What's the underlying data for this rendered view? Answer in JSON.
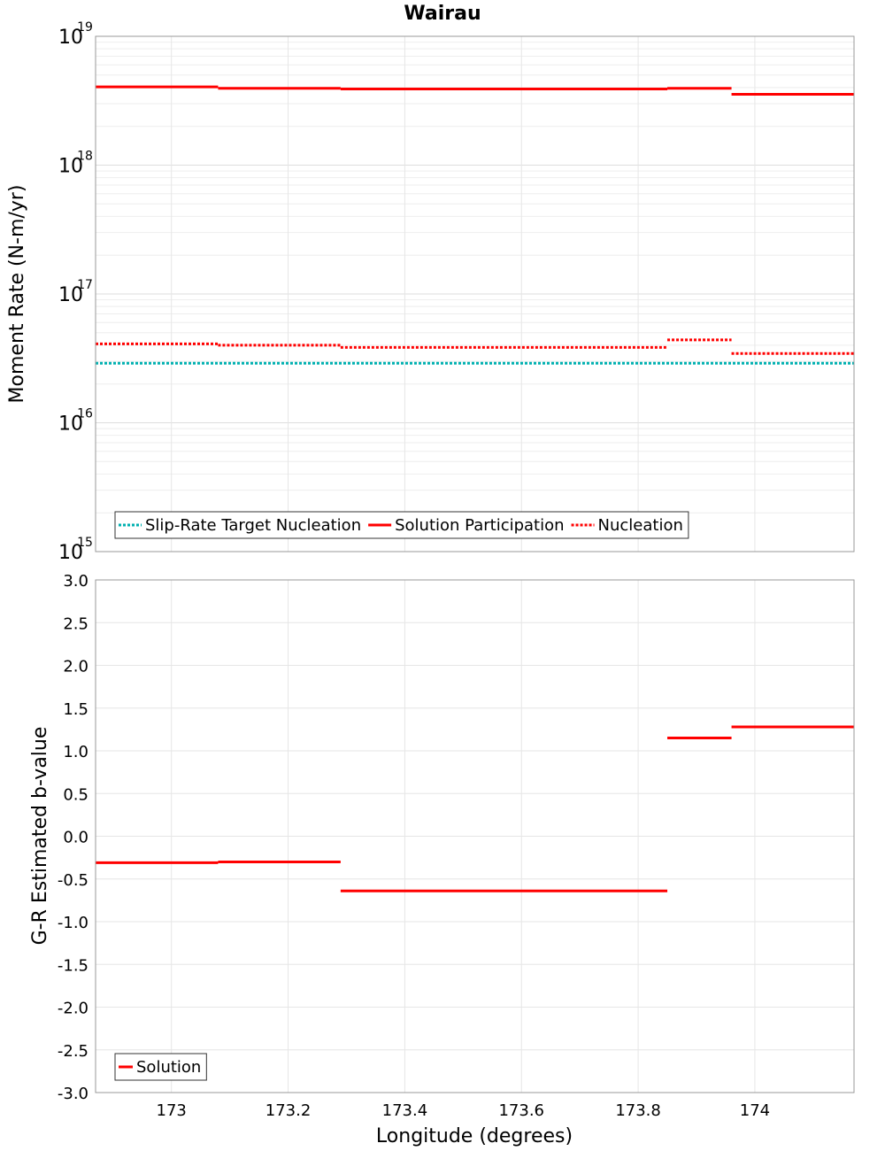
{
  "chart_data": [
    {
      "type": "line",
      "title": "Wairau",
      "xlabel": "",
      "ylabel": "Moment Rate (N-m/yr)",
      "yscale": "log",
      "xlim": [
        172.87,
        174.17
      ],
      "ylim": [
        1000000000000000.0,
        1e+19
      ],
      "y_ticks": [
        {
          "base": "10",
          "exp": "15",
          "value": 1000000000000000.0
        },
        {
          "base": "10",
          "exp": "16",
          "value": 1e+16
        },
        {
          "base": "10",
          "exp": "17",
          "value": 1e+17
        },
        {
          "base": "10",
          "exp": "18",
          "value": 1e+18
        },
        {
          "base": "10",
          "exp": "19",
          "value": 1e+19
        }
      ],
      "grid": true,
      "legend_position": "bottom-left",
      "series": [
        {
          "name": "Slip-Rate Target Nucleation",
          "color": "#00b0b0",
          "style": "dotted",
          "segments": [
            {
              "x0": 172.87,
              "x1": 174.17,
              "y": 2.9e+16
            }
          ]
        },
        {
          "name": "Solution Participation",
          "color": "#ff0000",
          "style": "solid",
          "segments": [
            {
              "x0": 172.87,
              "x1": 173.08,
              "y": 4.05e+18
            },
            {
              "x0": 173.08,
              "x1": 173.29,
              "y": 3.95e+18
            },
            {
              "x0": 173.29,
              "x1": 173.85,
              "y": 3.9e+18
            },
            {
              "x0": 173.85,
              "x1": 173.96,
              "y": 3.95e+18
            },
            {
              "x0": 173.96,
              "x1": 174.17,
              "y": 3.55e+18
            }
          ]
        },
        {
          "name": "Nucleation",
          "color": "#ff0000",
          "style": "dotted",
          "segments": [
            {
              "x0": 172.87,
              "x1": 173.08,
              "y": 4.1e+16
            },
            {
              "x0": 173.08,
              "x1": 173.29,
              "y": 4e+16
            },
            {
              "x0": 173.29,
              "x1": 173.85,
              "y": 3.85e+16
            },
            {
              "x0": 173.85,
              "x1": 173.96,
              "y": 4.4e+16
            },
            {
              "x0": 173.96,
              "x1": 174.17,
              "y": 3.45e+16
            }
          ]
        }
      ]
    },
    {
      "type": "line",
      "title": "",
      "xlabel": "Longitude (degrees)",
      "ylabel": "G-R Estimated b-value",
      "xlim": [
        172.87,
        174.17
      ],
      "ylim": [
        -3.0,
        3.0
      ],
      "x_ticks": [
        "173",
        "173.2",
        "173.4",
        "173.6",
        "173.8",
        "174"
      ],
      "x_tick_values": [
        173.0,
        173.2,
        173.4,
        173.6,
        173.8,
        174.0
      ],
      "y_ticks": [
        "-3.0",
        "-2.5",
        "-2.0",
        "-1.5",
        "-1.0",
        "-0.5",
        "0.0",
        "0.5",
        "1.0",
        "1.5",
        "2.0",
        "2.5",
        "3.0"
      ],
      "y_tick_values": [
        -3.0,
        -2.5,
        -2.0,
        -1.5,
        -1.0,
        -0.5,
        0.0,
        0.5,
        1.0,
        1.5,
        2.0,
        2.5,
        3.0
      ],
      "grid": true,
      "legend_position": "bottom-left",
      "series": [
        {
          "name": "Solution",
          "color": "#ff0000",
          "style": "solid",
          "segments": [
            {
              "x0": 172.87,
              "x1": 173.08,
              "y": -0.31
            },
            {
              "x0": 173.08,
              "x1": 173.29,
              "y": -0.3
            },
            {
              "x0": 173.29,
              "x1": 173.85,
              "y": -0.64
            },
            {
              "x0": 173.85,
              "x1": 173.96,
              "y": 1.15
            },
            {
              "x0": 173.96,
              "x1": 174.17,
              "y": 1.28
            }
          ]
        }
      ]
    }
  ]
}
